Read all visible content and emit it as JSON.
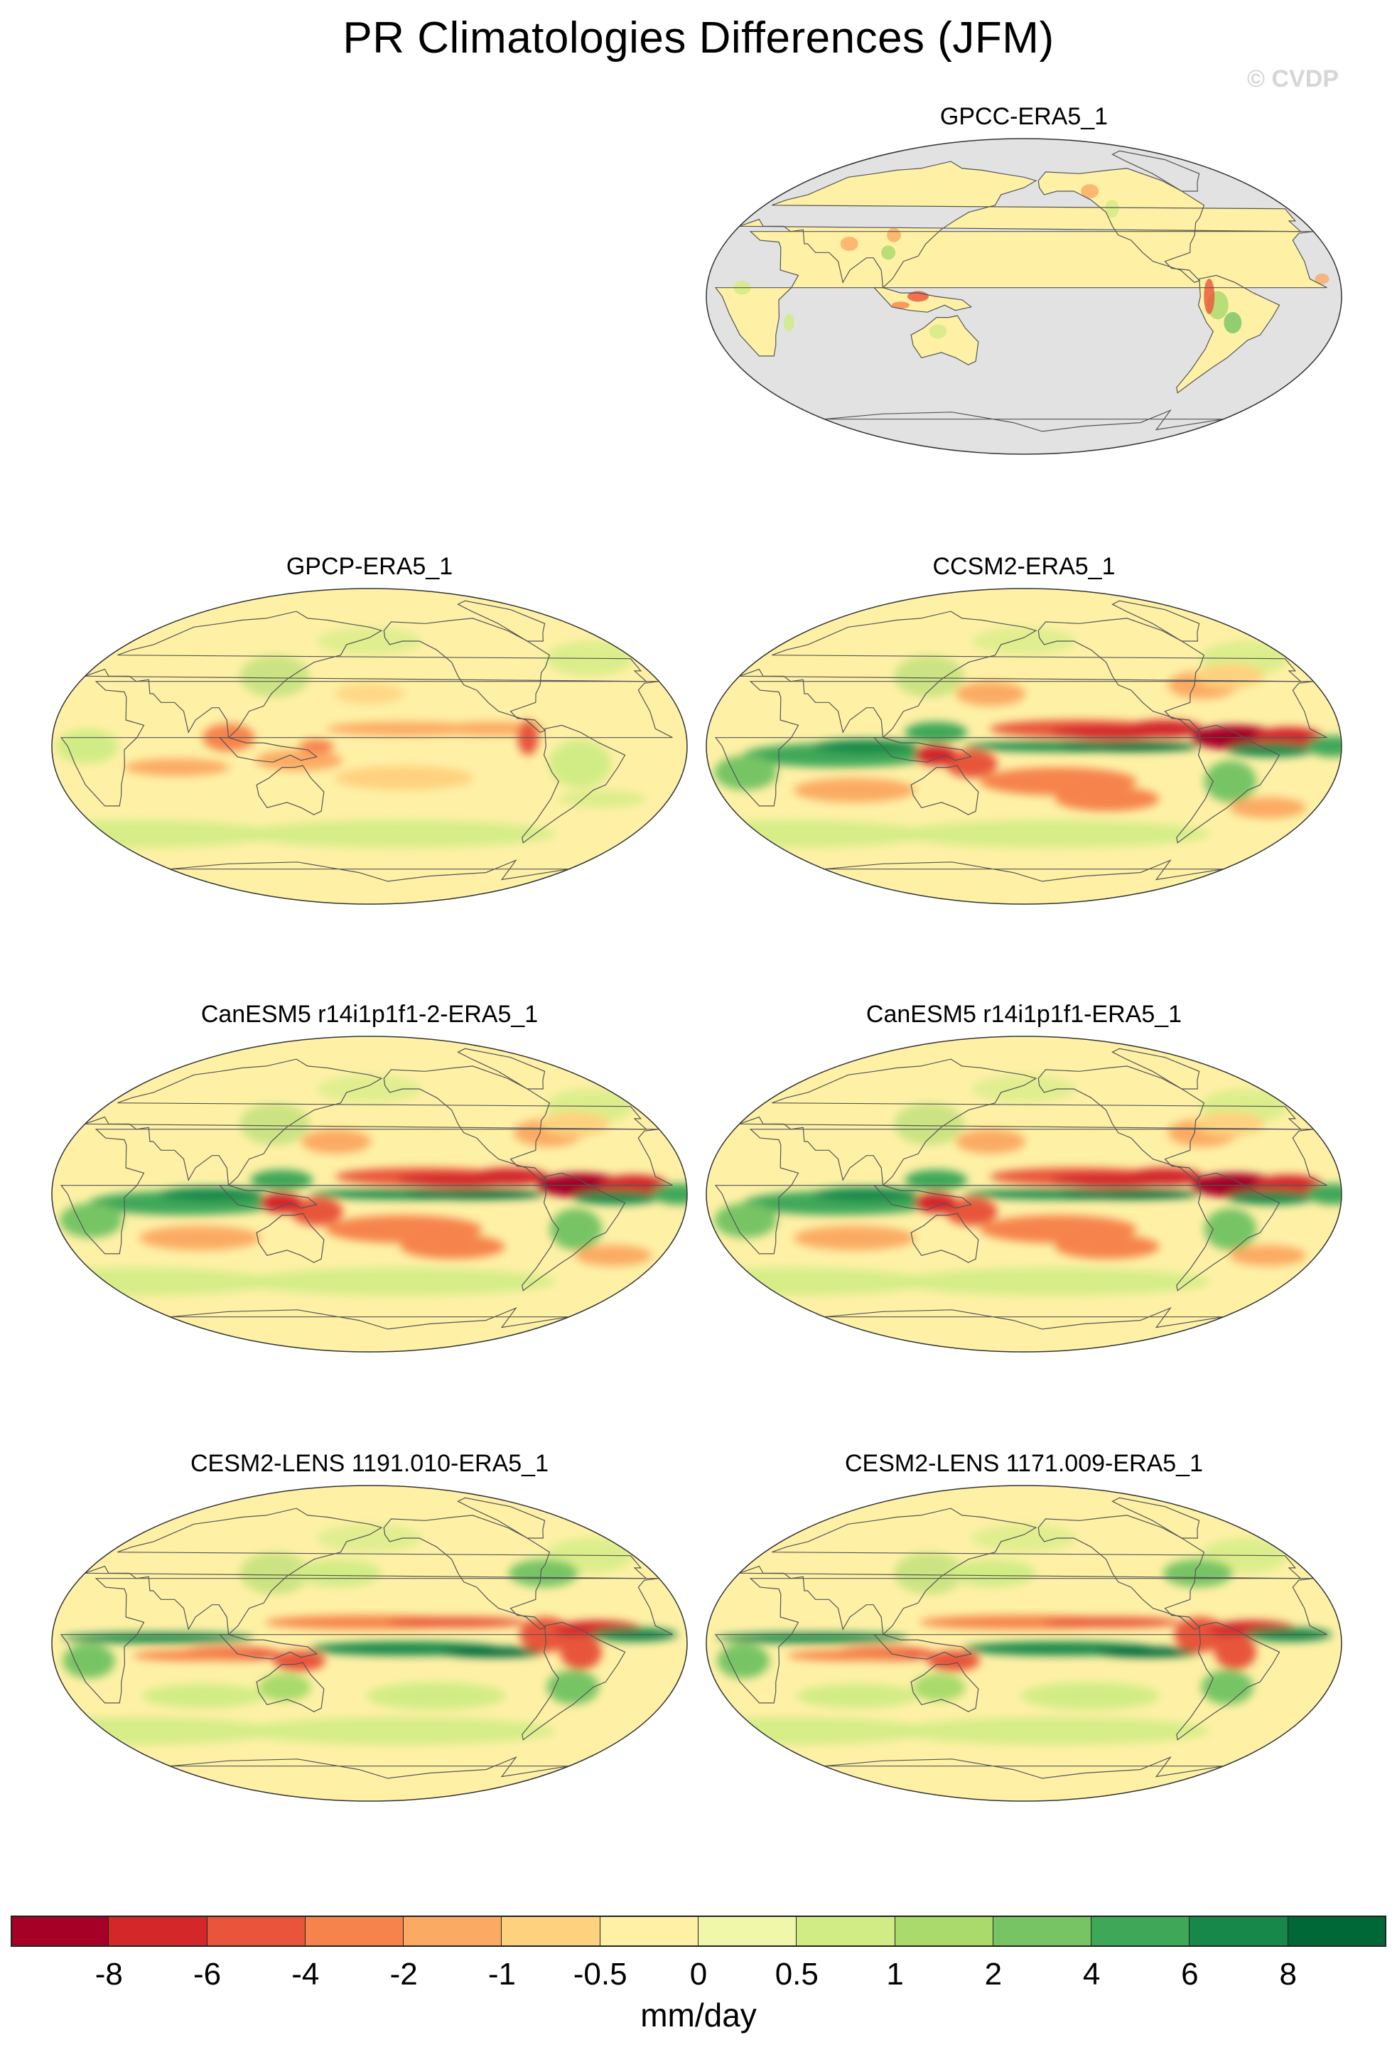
{
  "title": "PR Climatologies Differences (JFM)",
  "watermark": "© CVDP",
  "panels": [
    {
      "label": "GPCC-ERA5_1",
      "style": "land-only"
    },
    {
      "label": "GPCP-ERA5_1",
      "style": "weak"
    },
    {
      "label": "CCSM2-ERA5_1",
      "style": "strong"
    },
    {
      "label": "CanESM5 r14i1p1f1-2-ERA5_1",
      "style": "strong"
    },
    {
      "label": "CanESM5 r14i1p1f1-ERA5_1",
      "style": "strong"
    },
    {
      "label": "CESM2-LENS 1191.010-ERA5_1",
      "style": "double-itcz"
    },
    {
      "label": "CESM2-LENS 1171.009-ERA5_1",
      "style": "double-itcz"
    }
  ],
  "colorbar": {
    "colors": [
      "#a50026",
      "#d3272a",
      "#e8553a",
      "#f6834c",
      "#fbaa63",
      "#fed17f",
      "#fef1a6",
      "#f0f7a9",
      "#d2ec85",
      "#a9da6b",
      "#77c465",
      "#3fa858",
      "#17884a",
      "#006837"
    ],
    "tick_labels": [
      "-8",
      "-6",
      "-4",
      "-2",
      "-1",
      "-0.5",
      "0",
      "0.5",
      "1",
      "2",
      "4",
      "6",
      "8"
    ],
    "units": "mm/day"
  },
  "map_colors": {
    "ocean_missing": "#e2e2e2",
    "neutral": "#fef1a6",
    "coast": "#555555"
  }
}
